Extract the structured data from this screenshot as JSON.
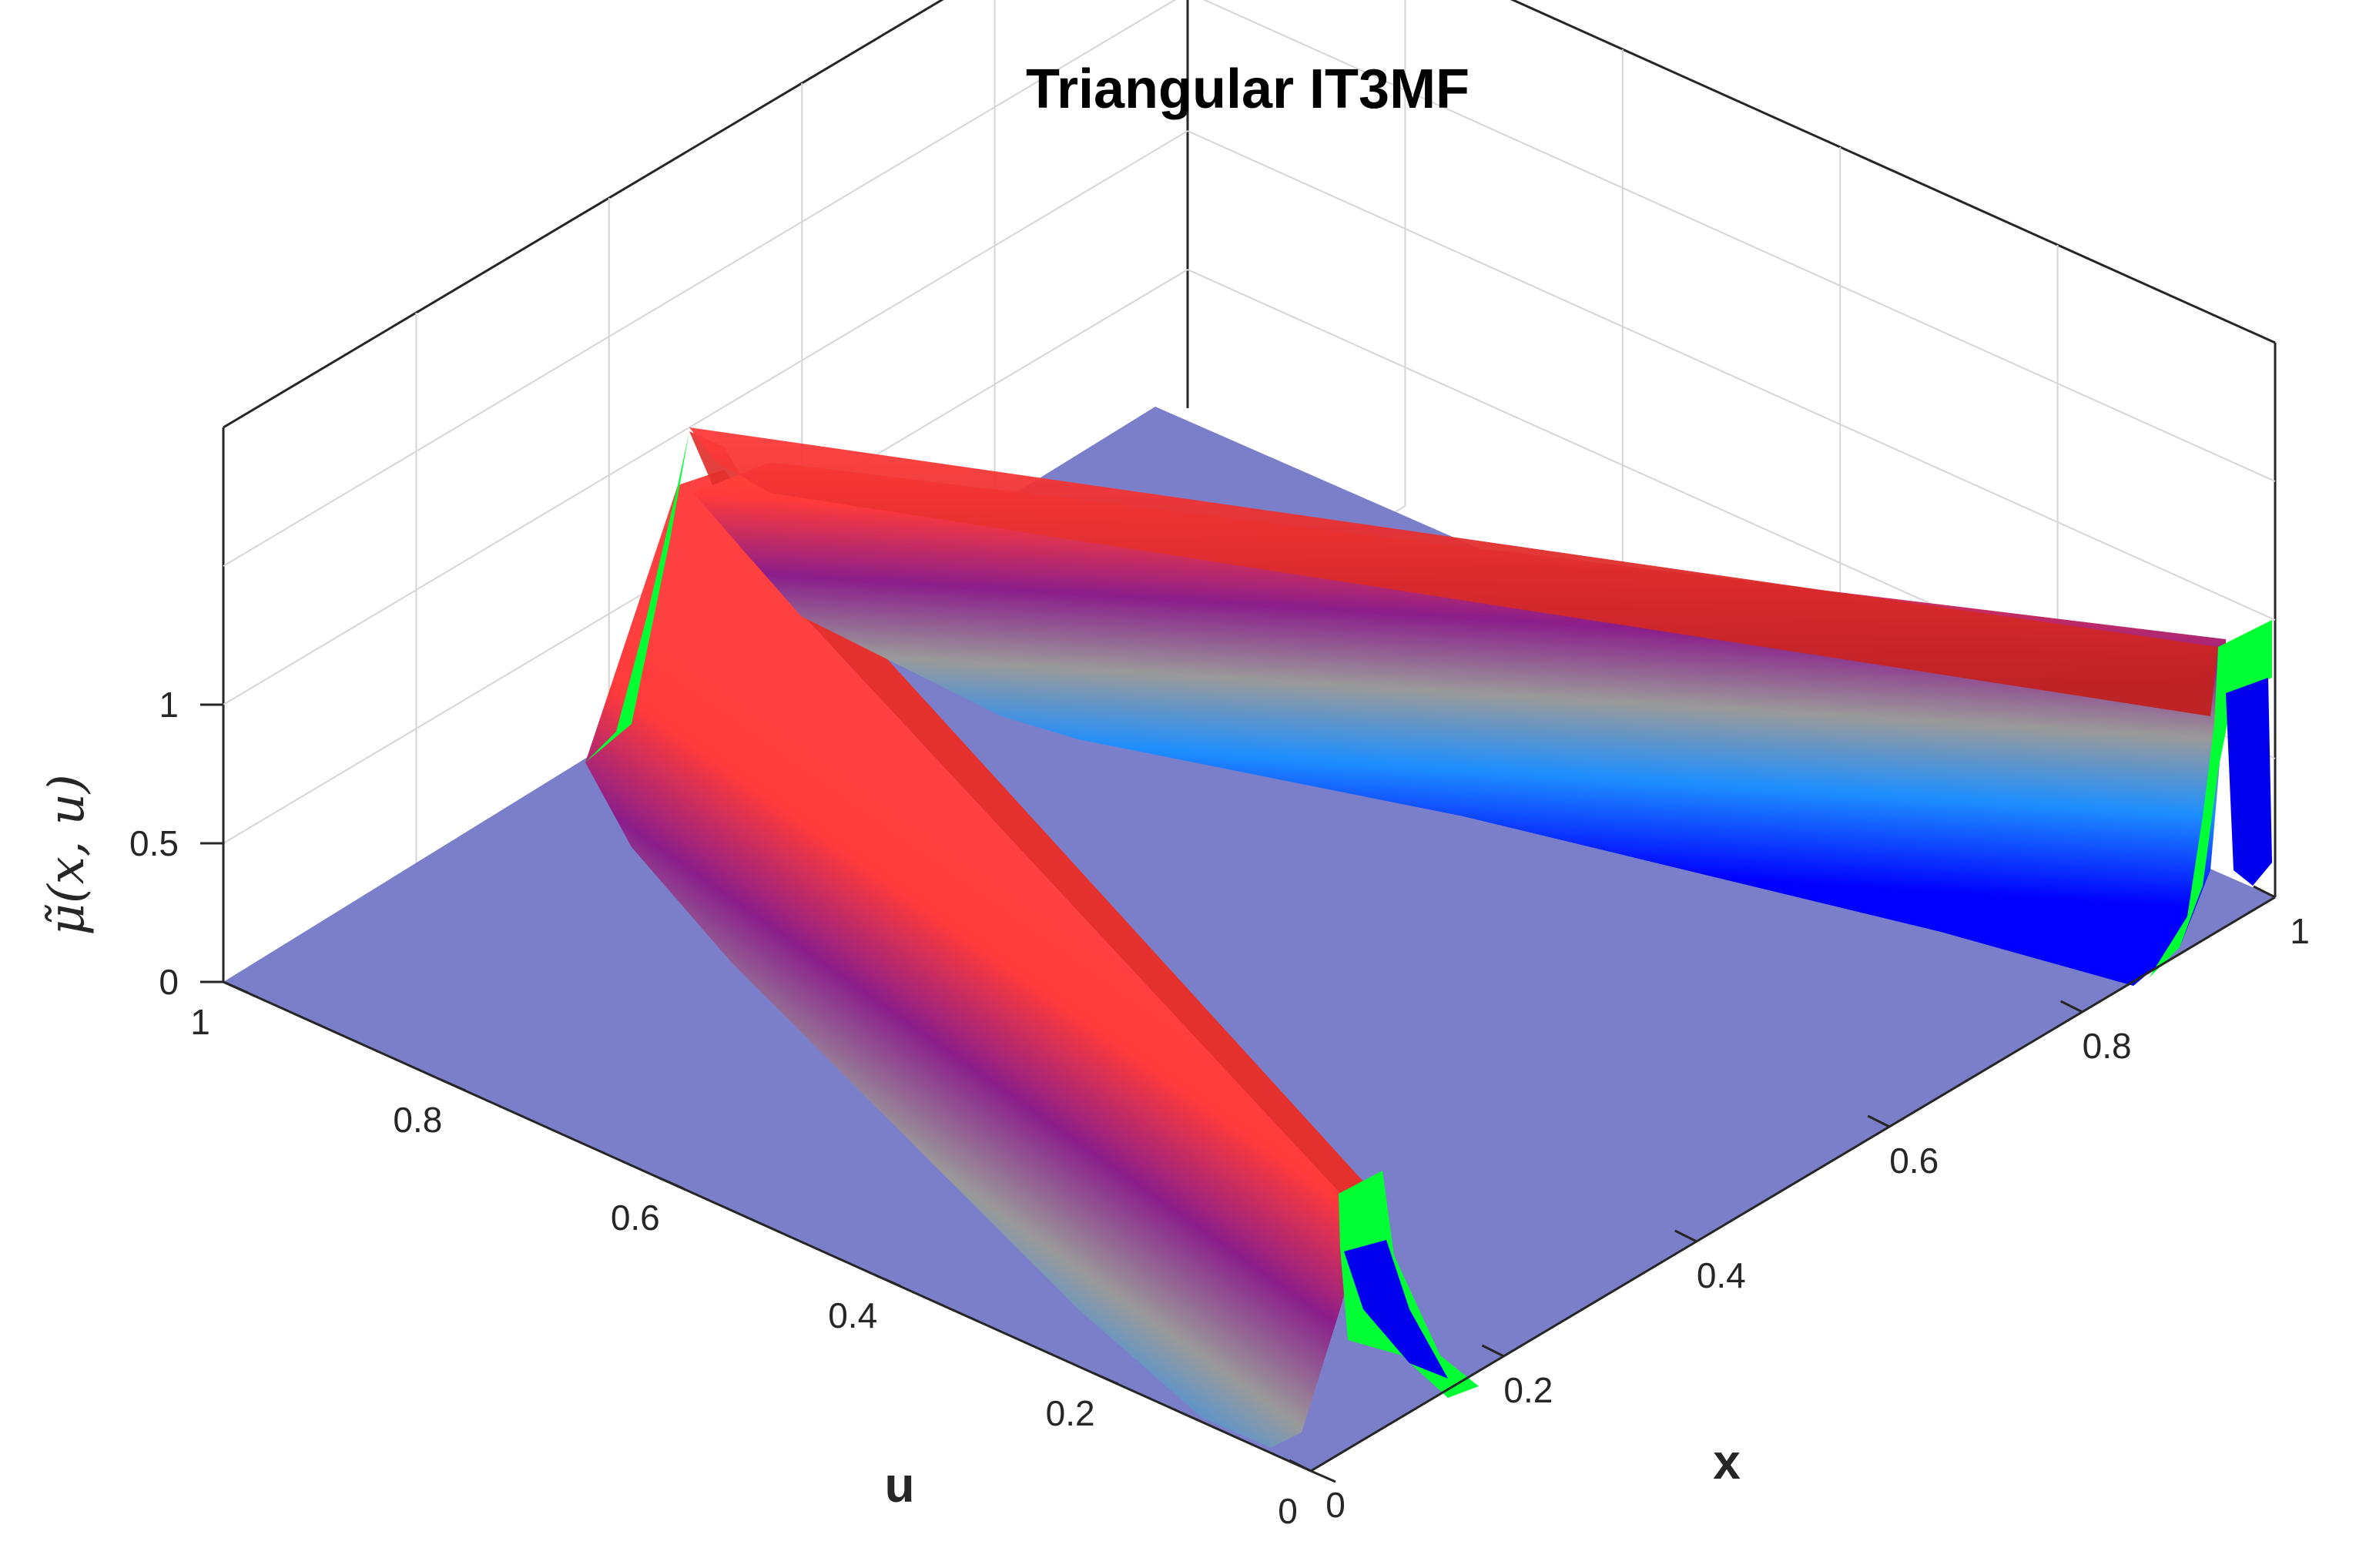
{
  "chart_data": {
    "type": "surface",
    "title": "Triangular IT3MF",
    "xlabel": "x",
    "ylabel": "u",
    "zlabel": "μ̃(x, u)",
    "xlim": [
      0,
      1
    ],
    "ylim": [
      0,
      1
    ],
    "zlim": [
      0,
      1
    ],
    "xticks": [
      "0",
      "0.2",
      "0.4",
      "0.6",
      "0.8",
      "1"
    ],
    "yticks": [
      "0",
      "0.2",
      "0.4",
      "0.6",
      "0.8",
      "1"
    ],
    "zticks": [
      "0",
      "0.5",
      "1"
    ],
    "grid": true,
    "colors": {
      "floor": "#7b7fc9",
      "low": "#0000ff",
      "mid_low": "#1e90ff",
      "mid": "#909090",
      "mid_high": "#8b1e8b",
      "high": "#ff3a3a",
      "edge": "#00ff33"
    },
    "ridges": [
      {
        "name": "",
        "x_start": 0.02,
        "x_end": 0.08,
        "u_start": 1.0,
        "u_end": 0.0,
        "peak": 1.0
      },
      {
        "name": "",
        "x_start": 0.02,
        "x_end": 0.98,
        "u_start": 1.0,
        "u_end": 1.0,
        "peak": 1.0
      }
    ]
  }
}
